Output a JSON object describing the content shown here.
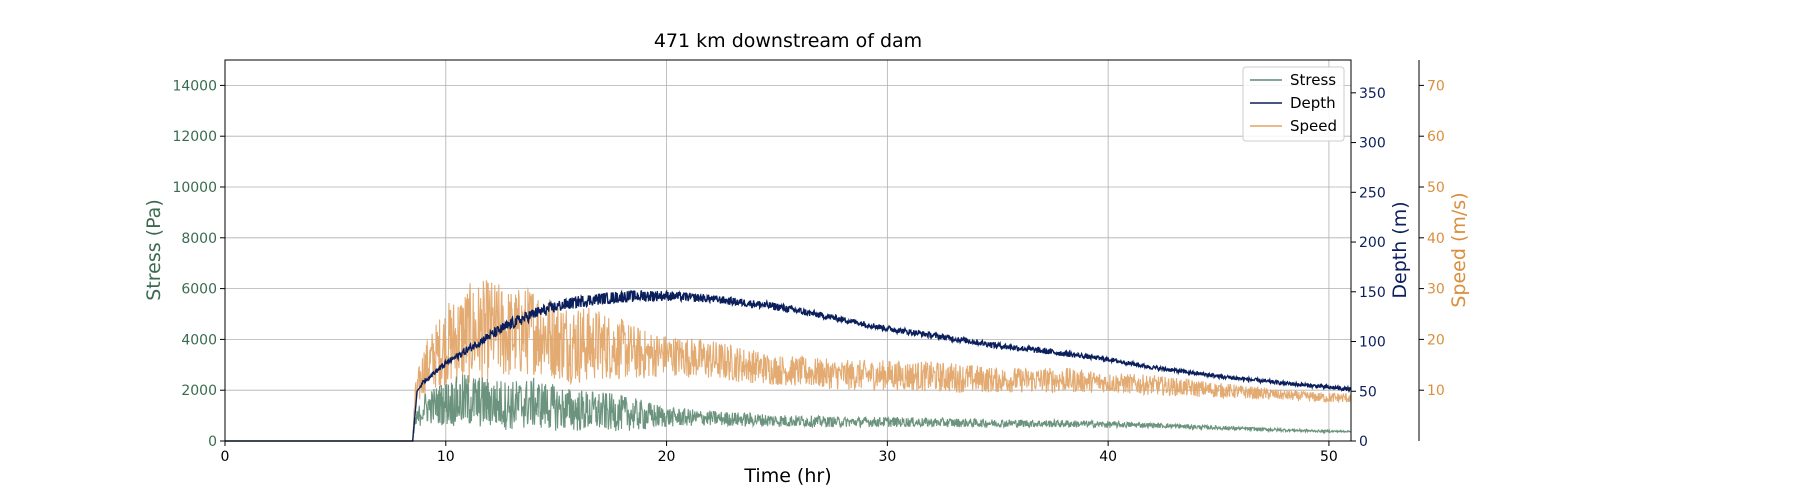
{
  "chart_data": {
    "type": "line",
    "title": "471 km downstream of dam",
    "xlabel": "Time (hr)",
    "xlim": [
      0,
      51
    ],
    "xticks": [
      0,
      10,
      20,
      30,
      40,
      50
    ],
    "grid": true,
    "legend": {
      "placement": "top-right",
      "entries": [
        "Stress",
        "Depth",
        "Speed"
      ]
    },
    "axes": {
      "stress": {
        "label": "Stress (Pa)",
        "side": "left",
        "color": "#3a6b50",
        "lim": [
          0,
          15000
        ],
        "ticks": [
          0,
          2000,
          4000,
          6000,
          8000,
          10000,
          12000,
          14000
        ]
      },
      "depth": {
        "label": "Depth (m)",
        "side": "right",
        "color": "#0b1f5c",
        "lim": [
          0,
          383
        ],
        "ticks": [
          0,
          50,
          100,
          150,
          200,
          250,
          300,
          350
        ]
      },
      "speed": {
        "label": "Speed (m/s)",
        "side": "right-outer",
        "color": "#d98f3c",
        "lim": [
          0,
          75
        ],
        "ticks": [
          10,
          20,
          30,
          40,
          50,
          60,
          70
        ]
      }
    },
    "series": [
      {
        "name": "Stress",
        "axis": "stress",
        "color": "#5e8a72",
        "x": [
          0,
          8.5,
          8.6,
          9,
          10,
          11,
          12,
          13,
          14,
          15,
          16,
          17,
          18,
          19,
          20,
          22,
          25,
          28,
          30,
          33,
          35,
          38,
          40,
          42,
          45,
          48,
          50,
          51
        ],
        "y": [
          0,
          0,
          700,
          1300,
          1500,
          1600,
          1500,
          1400,
          1500,
          1300,
          1200,
          1150,
          1100,
          1000,
          950,
          900,
          800,
          750,
          750,
          720,
          700,
          680,
          650,
          620,
          520,
          430,
          380,
          380
        ],
        "noise": [
          0,
          0,
          300,
          600,
          900,
          1100,
          1000,
          1000,
          1000,
          900,
          850,
          800,
          700,
          600,
          400,
          300,
          250,
          200,
          200,
          180,
          160,
          150,
          130,
          100,
          80,
          60,
          40,
          30
        ]
      },
      {
        "name": "Depth",
        "axis": "depth",
        "color": "#0b1f5c",
        "x": [
          0,
          8.5,
          8.7,
          9,
          10,
          11,
          12,
          13,
          14,
          15,
          16,
          17,
          18,
          19,
          20,
          22,
          25,
          28,
          30,
          33,
          35,
          38,
          40,
          42,
          45,
          48,
          50,
          51
        ],
        "y": [
          0,
          0,
          50,
          60,
          78,
          92,
          106,
          118,
          128,
          135,
          140,
          143,
          145,
          146,
          146,
          143,
          135,
          122,
          113,
          103,
          96,
          88,
          82,
          74,
          65,
          58,
          54,
          52
        ],
        "noise": [
          0,
          0,
          0,
          2,
          3,
          4,
          5,
          6,
          6,
          6,
          6,
          6,
          6,
          6,
          5,
          4,
          4,
          3,
          3,
          3,
          3,
          3,
          2,
          2,
          2,
          2,
          2,
          2
        ]
      },
      {
        "name": "Speed",
        "axis": "speed",
        "color": "#e1a466",
        "x": [
          0,
          8.5,
          8.6,
          9,
          10,
          11,
          12,
          13,
          14,
          15,
          16,
          17,
          18,
          19,
          20,
          22,
          25,
          28,
          30,
          33,
          35,
          38,
          40,
          42,
          45,
          48,
          50,
          51
        ],
        "y": [
          0,
          0,
          8,
          14,
          19,
          21,
          22,
          21,
          22,
          20,
          19,
          19,
          18,
          17,
          17,
          16,
          14,
          13,
          13,
          12.5,
          12,
          12,
          11.5,
          11,
          10,
          9,
          8.5,
          8.5
        ],
        "noise": [
          0,
          0,
          3,
          5,
          8,
          10,
          10,
          9,
          9,
          8,
          8,
          7,
          6,
          5,
          4,
          4,
          3,
          3,
          3,
          3,
          2.5,
          2.5,
          2,
          2,
          1.5,
          1,
          1,
          1
        ]
      }
    ]
  }
}
